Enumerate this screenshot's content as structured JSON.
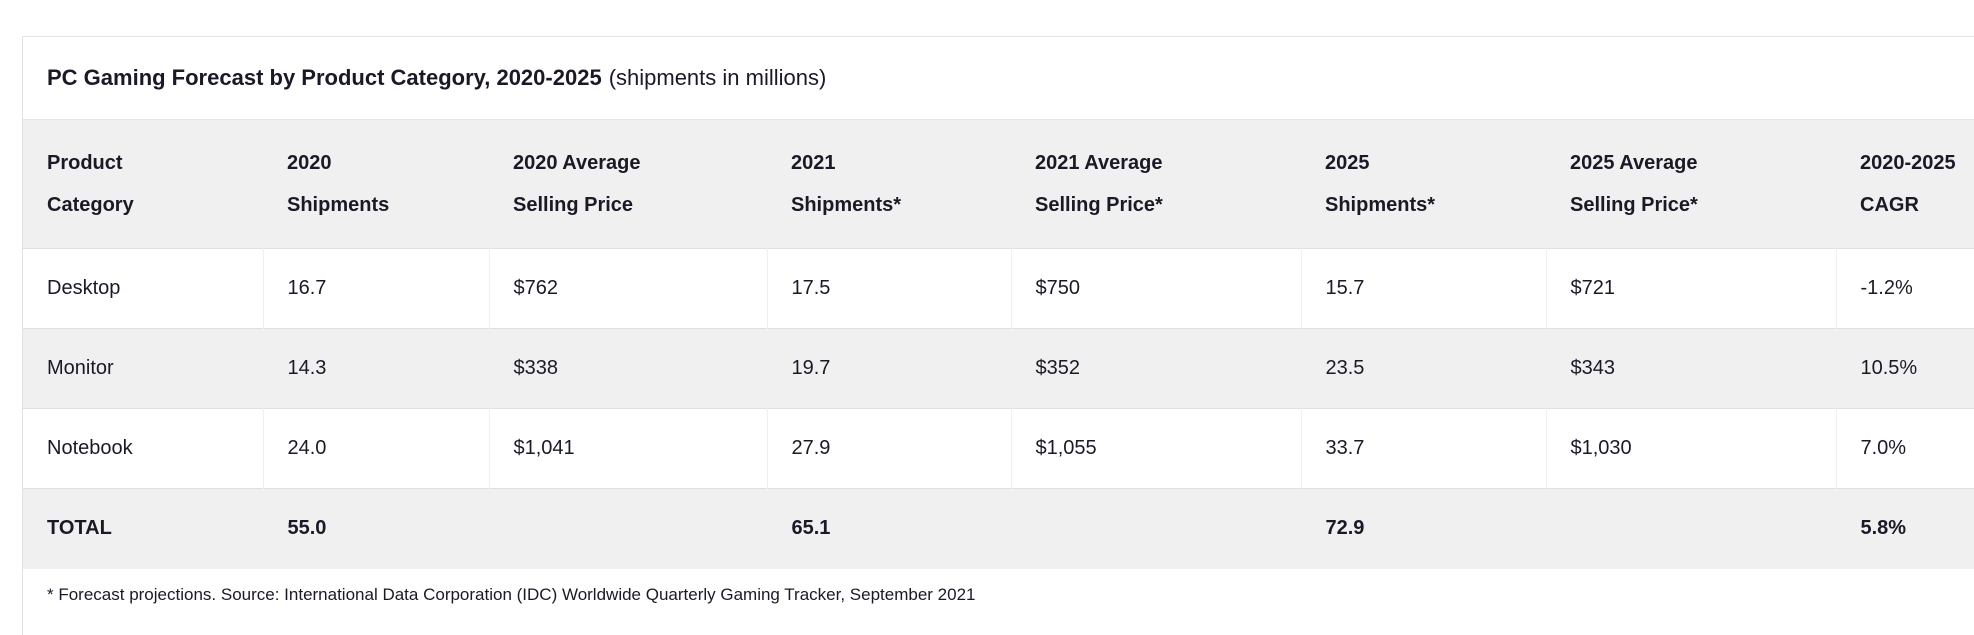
{
  "title": {
    "bold": "PC Gaming Forecast by Product Category, 2020-2025",
    "normal": "(shipments in millions)"
  },
  "table": {
    "columns": [
      {
        "line1": "Product",
        "line2": "Category"
      },
      {
        "line1": "2020",
        "line2": "Shipments"
      },
      {
        "line1": "2020 Average",
        "line2": "Selling Price"
      },
      {
        "line1": "2021",
        "line2": "Shipments*"
      },
      {
        "line1": "2021 Average",
        "line2": "Selling Price*"
      },
      {
        "line1": "2025",
        "line2": "Shipments*"
      },
      {
        "line1": "2025 Average",
        "line2": "Selling Price*"
      },
      {
        "line1": "2020-2025",
        "line2": "CAGR"
      }
    ],
    "rows": [
      {
        "cells": [
          "Desktop",
          "16.7",
          "$762",
          "17.5",
          "$750",
          "15.7",
          "$721",
          "-1.2%"
        ]
      },
      {
        "cells": [
          "Monitor",
          "14.3",
          "$338",
          "19.7",
          "$352",
          "23.5",
          "$343",
          "10.5%"
        ]
      },
      {
        "cells": [
          "Notebook",
          "24.0",
          "$1,041",
          "27.9",
          "$1,055",
          "33.7",
          "$1,030",
          "7.0%"
        ]
      },
      {
        "cells": [
          "TOTAL",
          "55.0",
          "",
          "65.1",
          "",
          "72.9",
          "",
          "5.8%"
        ]
      }
    ]
  },
  "footnote": "* Forecast projections. Source: International Data Corporation (IDC) Worldwide Quarterly Gaming Tracker, September 2021",
  "colors": {
    "text": "#1a1a27",
    "stripe": "#f0f0f0",
    "border": "#e0e0e0"
  }
}
